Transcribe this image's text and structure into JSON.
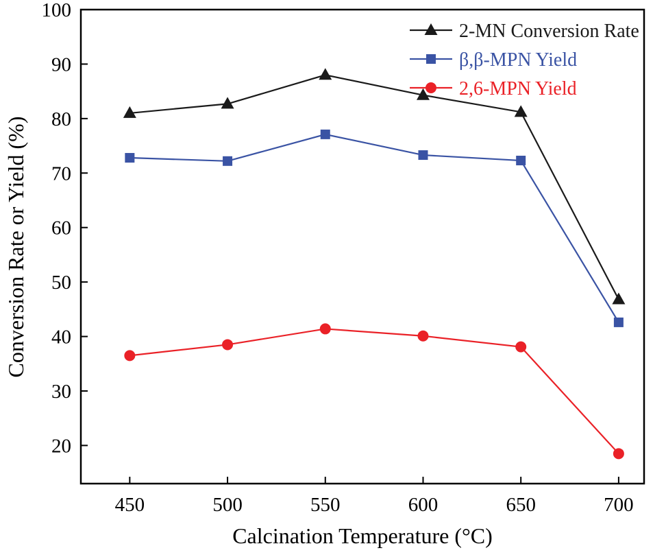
{
  "chart_data": {
    "type": "line",
    "x": [
      450,
      500,
      550,
      600,
      650,
      700
    ],
    "xticks": [
      450,
      500,
      550,
      600,
      650,
      700
    ],
    "yticks": [
      20,
      30,
      40,
      50,
      60,
      70,
      80,
      90,
      100
    ],
    "xlim": [
      425,
      713
    ],
    "ylim": [
      13,
      100
    ],
    "grid": false,
    "legend_position": "top-right-inside",
    "xlabel": "Calcination Temperature (°C)",
    "ylabel": "Conversion Rate or Yield (%)",
    "series": [
      {
        "name": "2-MN Conversion Rate",
        "marker": "triangle",
        "color": "#1a1a1a",
        "values": [
          81.0,
          82.7,
          88.0,
          84.3,
          81.2,
          46.8
        ]
      },
      {
        "name": "β,β-MPN Yield",
        "marker": "square",
        "color": "#3a53a4",
        "values": [
          72.8,
          72.2,
          77.1,
          73.3,
          72.3,
          42.6
        ]
      },
      {
        "name": "2,6-MPN Yield",
        "marker": "circle",
        "color": "#ea2127",
        "values": [
          36.5,
          38.5,
          41.4,
          40.1,
          38.1,
          18.5
        ]
      }
    ]
  }
}
